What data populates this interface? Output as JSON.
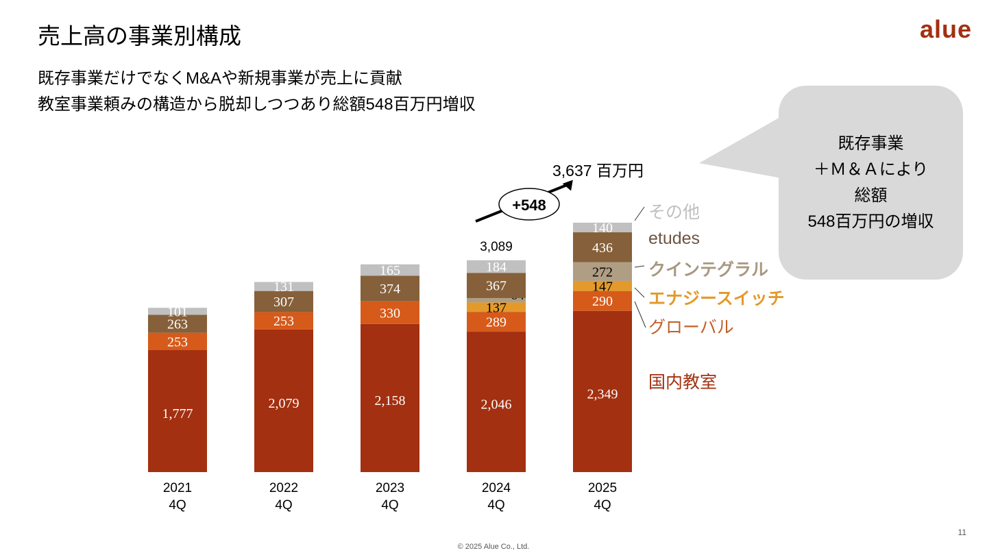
{
  "header": {
    "title": "売上高の事業別構成",
    "logo": "alue",
    "subtitle_1": "既存事業だけでなくM&Aや新規事業が売上に貢献",
    "subtitle_2": "教室事業頼みの構造から脱却しつつあり総額548百万円増収"
  },
  "callout": {
    "lines": [
      "既存事業",
      "＋Ｍ＆Ａにより",
      "総額",
      "548百万円の増収"
    ]
  },
  "chart_data": {
    "type": "bar",
    "stacked": true,
    "categories": [
      "2021\n4Q",
      "2022\n4Q",
      "2023\n4Q",
      "2024\n4Q",
      "2025\n4Q"
    ],
    "category_lines": [
      [
        "2021",
        "4Q"
      ],
      [
        "2022",
        "4Q"
      ],
      [
        "2023",
        "4Q"
      ],
      [
        "2024",
        "4Q"
      ],
      [
        "2025",
        "4Q"
      ]
    ],
    "series": [
      {
        "name": "国内教室",
        "color": "#A33010",
        "values": [
          1777,
          2079,
          2158,
          2046,
          2349
        ],
        "labels": [
          "1,777",
          "2,079",
          "2,158",
          "2,046",
          "2,349"
        ]
      },
      {
        "name": "グローバル",
        "color": "#D65A1A",
        "values": [
          253,
          253,
          330,
          289,
          290
        ],
        "labels": [
          "253",
          "253",
          "330",
          "289",
          "290"
        ]
      },
      {
        "name": "エナジースイッチ",
        "color": "#E39A2A",
        "values": [
          null,
          null,
          null,
          137,
          147
        ],
        "labels": [
          "",
          "",
          "",
          "137",
          "147"
        ]
      },
      {
        "name": "クインテグラル",
        "color": "#B09E84",
        "values": [
          null,
          null,
          null,
          64,
          272
        ],
        "labels": [
          "",
          "",
          "",
          "64",
          "272"
        ]
      },
      {
        "name": "etudes",
        "color": "#86603A",
        "values": [
          263,
          307,
          374,
          367,
          436
        ],
        "labels": [
          "263",
          "307",
          "374",
          "367",
          "436"
        ]
      },
      {
        "name": "その他",
        "color": "#C0C0C0",
        "values": [
          101,
          131,
          165,
          184,
          140
        ],
        "labels": [
          "101",
          "131",
          "165",
          "184",
          "140"
        ]
      }
    ],
    "legend_placement": "right",
    "totals": {
      "2024": "3,089",
      "2025": "3,637 百万円"
    },
    "annotation": "+548"
  },
  "footer": {
    "copyright": "© 2025 Alue Co., Ltd.",
    "page": "11"
  }
}
